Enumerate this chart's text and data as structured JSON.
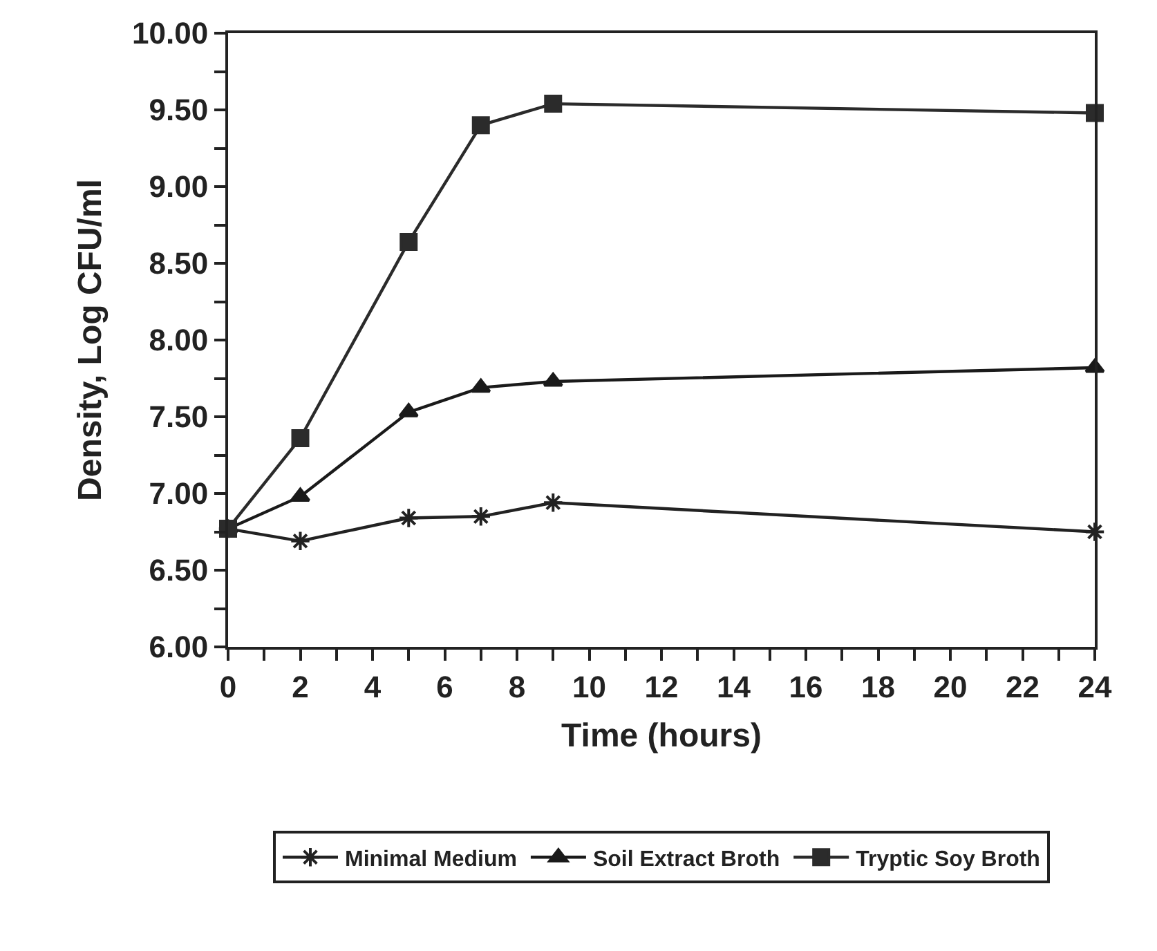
{
  "chart_data": {
    "type": "line",
    "xlabel": "Time (hours)",
    "ylabel": "Density, Log CFU/ml",
    "x": [
      0,
      2,
      5,
      7,
      9,
      24
    ],
    "series": [
      {
        "name": "Minimal Medium",
        "color": "#222222",
        "marker": "cross",
        "values": [
          6.77,
          6.69,
          6.84,
          6.85,
          6.94,
          6.75
        ]
      },
      {
        "name": "Soil Extract Broth",
        "color": "#1a1a1a",
        "marker": "triangle",
        "values": [
          6.77,
          6.98,
          7.53,
          7.69,
          7.73,
          7.82
        ]
      },
      {
        "name": "Tryptic Soy Broth",
        "color": "#2b2b2b",
        "marker": "square",
        "values": [
          6.77,
          7.36,
          8.64,
          9.4,
          9.54,
          9.48
        ]
      }
    ],
    "xlim": [
      0,
      24
    ],
    "xticks": [
      0,
      2,
      4,
      6,
      8,
      10,
      12,
      14,
      16,
      18,
      20,
      22,
      24
    ],
    "ylim": [
      6,
      10
    ],
    "yticks": [
      {
        "value": 6,
        "label": "6.00"
      },
      {
        "value": 6.5,
        "label": "6.50"
      },
      {
        "value": 7,
        "label": "7.00"
      },
      {
        "value": 7.5,
        "label": "7.50"
      },
      {
        "value": 8,
        "label": "8.00"
      },
      {
        "value": 8.5,
        "label": "8.50"
      },
      {
        "value": 9,
        "label": "9.00"
      },
      {
        "value": 9.5,
        "label": "9.50"
      },
      {
        "value": 10,
        "label": "10.00"
      }
    ],
    "legend": "bottom",
    "line_style": "solid"
  }
}
